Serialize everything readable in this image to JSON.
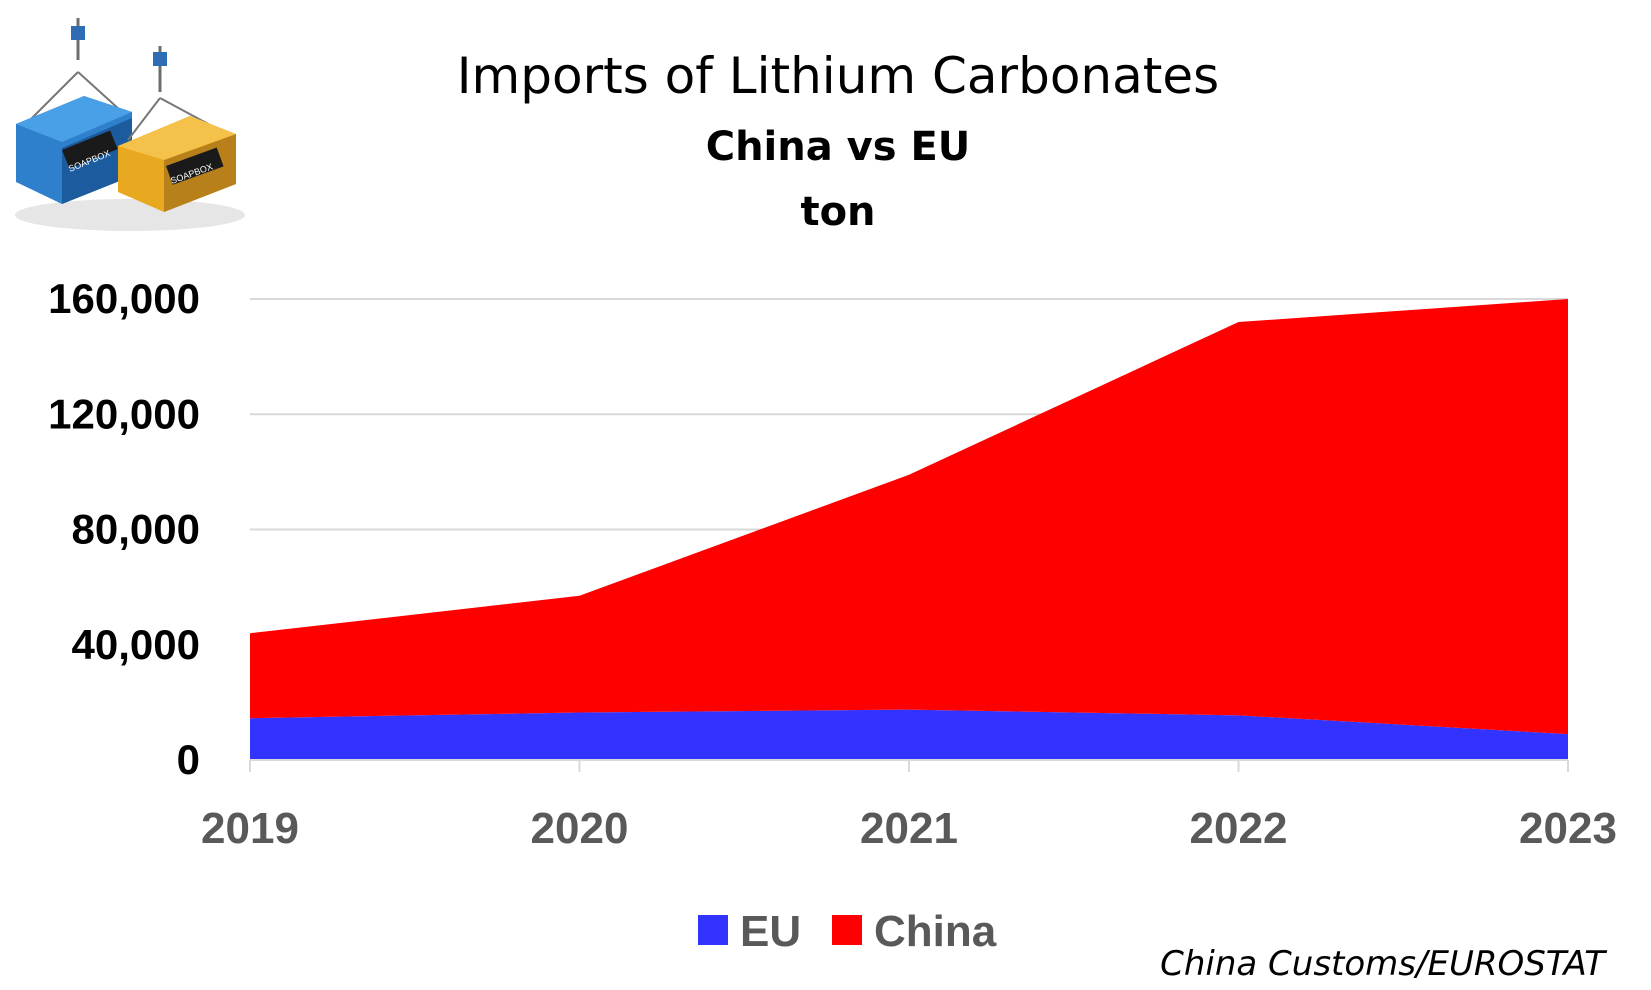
{
  "chart_data": {
    "type": "area",
    "stacked": true,
    "title": "Imports of Lithium Carbonates",
    "subtitle": "China vs EU",
    "unit": "ton",
    "categories": [
      "2019",
      "2020",
      "2021",
      "2022",
      "2023"
    ],
    "series": [
      {
        "name": "EU",
        "color": "#3333ff",
        "values": [
          14500,
          16500,
          17500,
          15500,
          9000
        ]
      },
      {
        "name": "China",
        "color": "#ff0000",
        "values": [
          29500,
          40500,
          81500,
          136500,
          151000
        ]
      }
    ],
    "ylim": [
      0,
      160000
    ],
    "yticks": [
      "0",
      "40,000",
      "80,000",
      "120,000",
      "160,000"
    ],
    "grid": true,
    "legend": "bottom",
    "source": "China Customs/EUROSTAT"
  },
  "logo": {
    "icon": "shipping-containers-logo",
    "label": "SOAPBOX"
  }
}
